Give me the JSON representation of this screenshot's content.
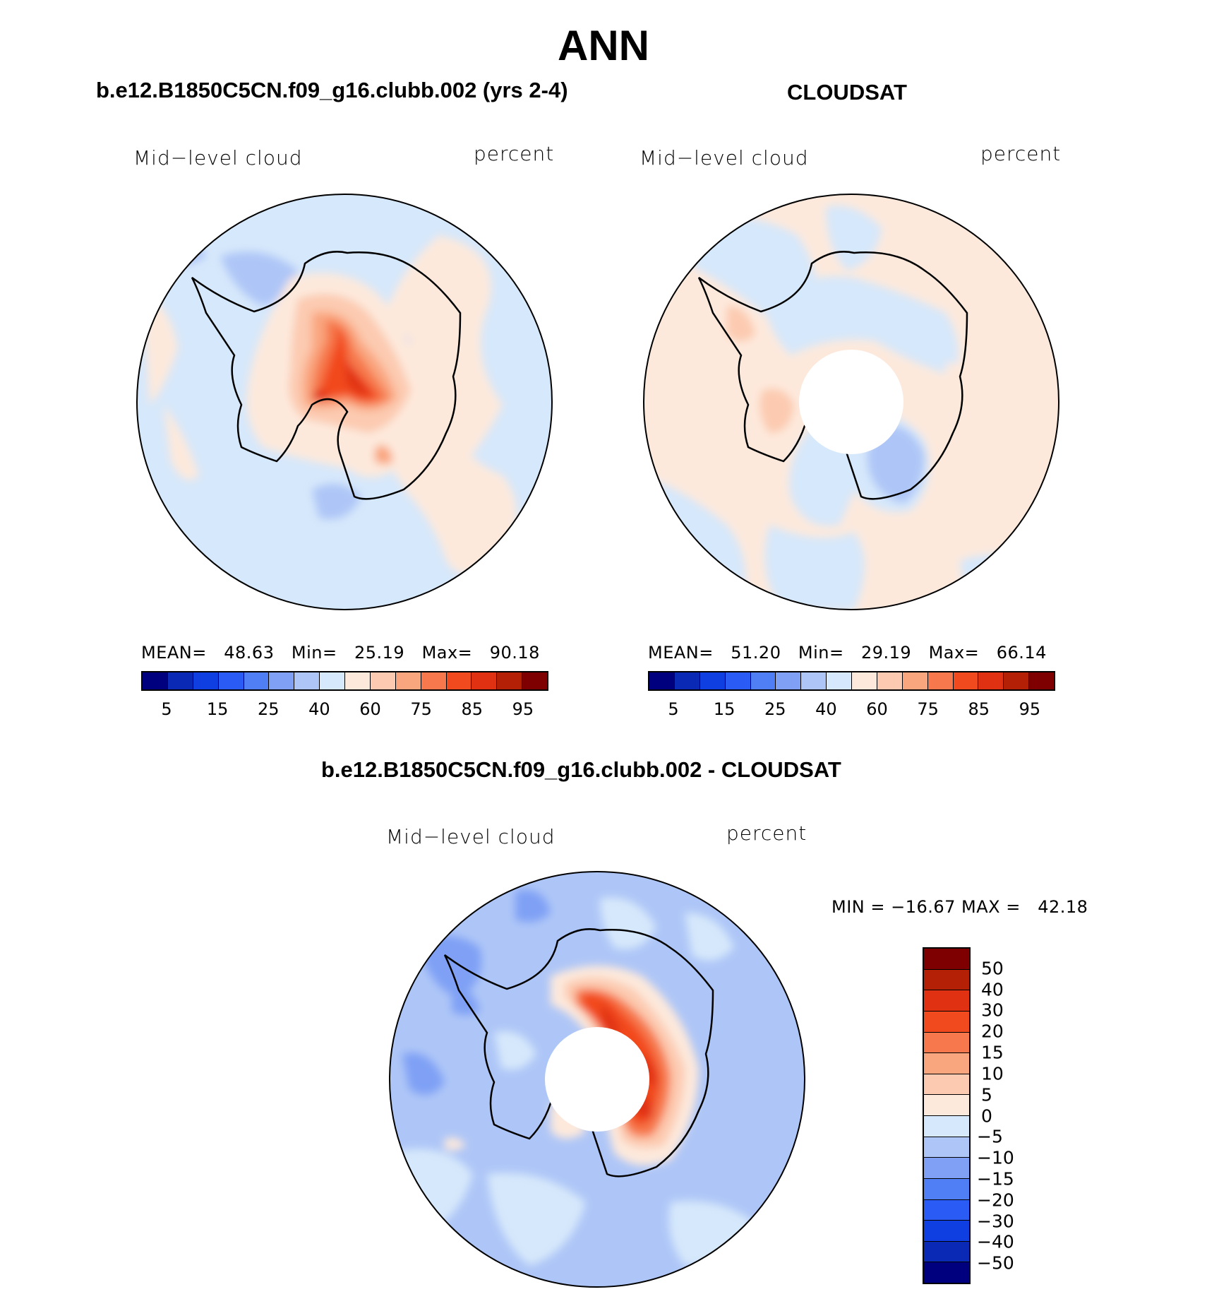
{
  "title": "ANN",
  "panels": [
    {
      "title": "b.e12.B1850C5CN.f09_g16.clubb.002 (yrs 2-4)",
      "variable": "Mid−level cloud",
      "units": "percent",
      "mean_label": "MEAN=",
      "mean": "48.63",
      "min_label": "Min=",
      "min": "25.19",
      "max_label": "Max=",
      "max": "90.18"
    },
    {
      "title": "CLOUDSAT",
      "variable": "Mid−level cloud",
      "units": "percent",
      "mean_label": "MEAN=",
      "mean": "51.20",
      "min_label": "Min=",
      "min": "29.19",
      "max_label": "Max=",
      "max": "66.14"
    }
  ],
  "diff_panel": {
    "title": "b.e12.B1850C5CN.f09_g16.clubb.002 - CLOUDSAT",
    "variable": "Mid−level cloud",
    "units": "percent",
    "minmax": "MIN = −16.67 MAX =   42.18"
  },
  "colorbar_abs": {
    "colors": [
      "#00007f",
      "#0a2ab5",
      "#0f3fe0",
      "#2a5cf5",
      "#4f7ef5",
      "#7fa0f5",
      "#aec6f7",
      "#d6e8fb",
      "#fde9dc",
      "#fccab0",
      "#f9a67f",
      "#f6784c",
      "#f24a1f",
      "#e03212",
      "#b42006",
      "#7f0000"
    ],
    "labels": [
      "5",
      "15",
      "25",
      "40",
      "60",
      "75",
      "85",
      "95"
    ]
  },
  "colorbar_diff": {
    "colors": [
      "#7f0000",
      "#b42006",
      "#e03212",
      "#f24a1f",
      "#f6784c",
      "#f9a67f",
      "#fccab0",
      "#fde9dc",
      "#d6e8fb",
      "#aec6f7",
      "#7fa0f5",
      "#4f7ef5",
      "#2a5cf5",
      "#0f3fe0",
      "#0a2ab5",
      "#00007f"
    ],
    "labels": [
      "50",
      "40",
      "30",
      "20",
      "15",
      "10",
      "5",
      "0",
      "−5",
      "−10",
      "−15",
      "−20",
      "−30",
      "−40",
      "−50"
    ]
  }
}
